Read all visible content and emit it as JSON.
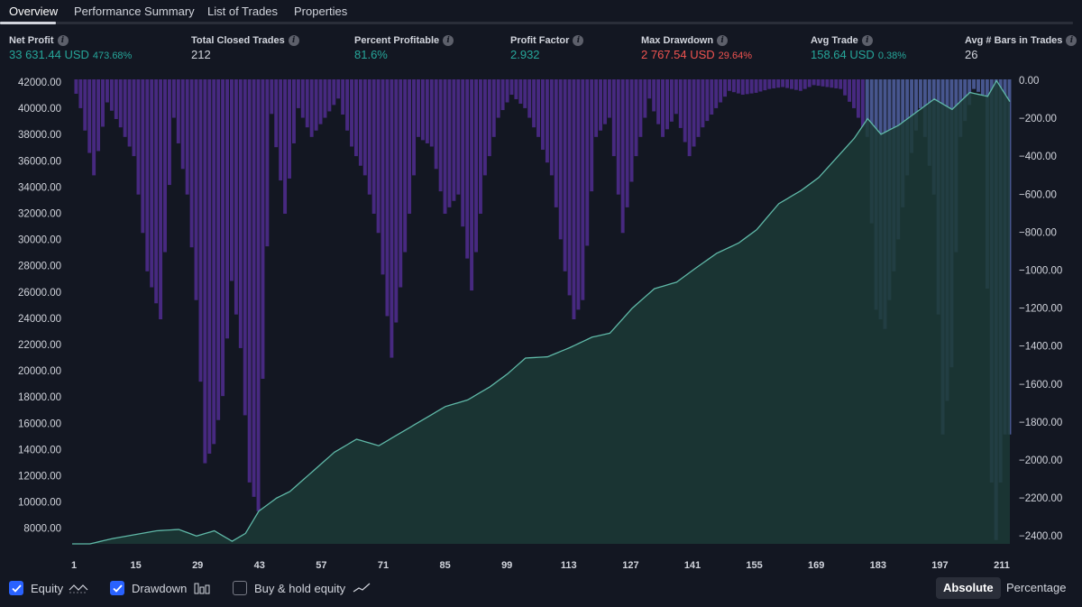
{
  "tabs": [
    {
      "label": "Overview",
      "active": true
    },
    {
      "label": "Performance Summary",
      "active": false
    },
    {
      "label": "List of Trades",
      "active": false
    },
    {
      "label": "Properties",
      "active": false
    }
  ],
  "stats": {
    "net_profit": {
      "label": "Net Profit",
      "value": "33 631.44 USD",
      "sub": "473.68%"
    },
    "total_closed_trades": {
      "label": "Total Closed Trades",
      "value": "212"
    },
    "percent_profitable": {
      "label": "Percent Profitable",
      "value": "81.6%"
    },
    "profit_factor": {
      "label": "Profit Factor",
      "value": "2.932"
    },
    "max_drawdown": {
      "label": "Max Drawdown",
      "value": "2 767.54 USD",
      "sub": "29.64%"
    },
    "avg_trade": {
      "label": "Avg Trade",
      "value": "158.64 USD",
      "sub": "0.38%"
    },
    "avg_bars": {
      "label": "Avg # Bars in Trades",
      "value": "26"
    }
  },
  "colors": {
    "background": "#131722",
    "equity_line": "#5fb8a7",
    "equity_fill": "#1c3a36",
    "drawdown_bar": "#4a2a86",
    "drawdown_bar_overlap": "#4a5a95",
    "positive": "#26a69a",
    "negative": "#ef5350",
    "checkbox": "#2962ff"
  },
  "chart_data": {
    "type": "area",
    "x_ticks": [
      "1",
      "15",
      "29",
      "43",
      "57",
      "71",
      "85",
      "99",
      "113",
      "127",
      "141",
      "155",
      "169",
      "183",
      "197",
      "211"
    ],
    "y_left_ticks": [
      "42000.00",
      "40000.00",
      "38000.00",
      "36000.00",
      "34000.00",
      "32000.00",
      "30000.00",
      "28000.00",
      "26000.00",
      "24000.00",
      "22000.00",
      "20000.00",
      "18000.00",
      "16000.00",
      "14000.00",
      "12000.00",
      "10000.00",
      "8000.00"
    ],
    "y_right_ticks": [
      "0.00",
      "−200.00",
      "−400.00",
      "−600.00",
      "−800.00",
      "−1000.00",
      "−1200.00",
      "−1400.00",
      "−1600.00",
      "−1800.00",
      "−2000.00",
      "−2200.00",
      "−2400.00"
    ],
    "y_left_range": [
      7000,
      42500
    ],
    "y_right_range": [
      -2420,
      0
    ],
    "x_range": [
      1,
      212
    ],
    "series": [
      {
        "name": "Equity",
        "type": "area",
        "points": [
          [
            1,
            7000
          ],
          [
            5,
            7000
          ],
          [
            10,
            7400
          ],
          [
            15,
            7700
          ],
          [
            20,
            8000
          ],
          [
            25,
            8100
          ],
          [
            29,
            7600
          ],
          [
            33,
            8000
          ],
          [
            37,
            7200
          ],
          [
            40,
            7800
          ],
          [
            43,
            9500
          ],
          [
            47,
            10500
          ],
          [
            50,
            11000
          ],
          [
            55,
            12500
          ],
          [
            60,
            14000
          ],
          [
            65,
            15000
          ],
          [
            70,
            14500
          ],
          [
            75,
            15500
          ],
          [
            80,
            16500
          ],
          [
            85,
            17500
          ],
          [
            90,
            18000
          ],
          [
            95,
            19000
          ],
          [
            99,
            20000
          ],
          [
            103,
            21200
          ],
          [
            108,
            21300
          ],
          [
            113,
            22000
          ],
          [
            118,
            22800
          ],
          [
            122,
            23100
          ],
          [
            127,
            25000
          ],
          [
            132,
            26500
          ],
          [
            137,
            27000
          ],
          [
            141,
            28000
          ],
          [
            146,
            29200
          ],
          [
            151,
            30000
          ],
          [
            155,
            31000
          ],
          [
            160,
            33000
          ],
          [
            165,
            34000
          ],
          [
            169,
            35000
          ],
          [
            173,
            36500
          ],
          [
            177,
            38000
          ],
          [
            180,
            39500
          ],
          [
            183,
            38300
          ],
          [
            187,
            39000
          ],
          [
            191,
            40000
          ],
          [
            195,
            41000
          ],
          [
            199,
            40200
          ],
          [
            203,
            41500
          ],
          [
            207,
            41200
          ],
          [
            209,
            42400
          ],
          [
            212,
            40800
          ]
        ]
      },
      {
        "name": "Drawdown",
        "type": "bar",
        "points": [
          [
            1,
            0
          ],
          [
            3,
            -150
          ],
          [
            6,
            -500
          ],
          [
            9,
            -120
          ],
          [
            12,
            -250
          ],
          [
            15,
            -400
          ],
          [
            18,
            -1000
          ],
          [
            21,
            -1250
          ],
          [
            24,
            -200
          ],
          [
            27,
            -600
          ],
          [
            29,
            -1150
          ],
          [
            31,
            -2000
          ],
          [
            33,
            -1900
          ],
          [
            35,
            -1650
          ],
          [
            37,
            -1050
          ],
          [
            39,
            -1400
          ],
          [
            41,
            -2100
          ],
          [
            43,
            -2250
          ],
          [
            46,
            -180
          ],
          [
            49,
            -700
          ],
          [
            52,
            -150
          ],
          [
            55,
            -300
          ],
          [
            58,
            -200
          ],
          [
            61,
            -100
          ],
          [
            64,
            -350
          ],
          [
            67,
            -500
          ],
          [
            70,
            -800
          ],
          [
            73,
            -1450
          ],
          [
            76,
            -900
          ],
          [
            79,
            -300
          ],
          [
            82,
            -350
          ],
          [
            85,
            -700
          ],
          [
            88,
            -600
          ],
          [
            91,
            -1100
          ],
          [
            94,
            -500
          ],
          [
            97,
            -200
          ],
          [
            100,
            -80
          ],
          [
            103,
            -150
          ],
          [
            106,
            -300
          ],
          [
            109,
            -500
          ],
          [
            112,
            -1000
          ],
          [
            114,
            -1250
          ],
          [
            116,
            -1150
          ],
          [
            119,
            -300
          ],
          [
            122,
            -200
          ],
          [
            125,
            -800
          ],
          [
            128,
            -400
          ],
          [
            131,
            -100
          ],
          [
            134,
            -300
          ],
          [
            137,
            -180
          ],
          [
            140,
            -400
          ],
          [
            143,
            -250
          ],
          [
            146,
            -150
          ],
          [
            149,
            -60
          ],
          [
            152,
            -80
          ],
          [
            155,
            -70
          ],
          [
            158,
            -50
          ],
          [
            161,
            -40
          ],
          [
            165,
            -60
          ],
          [
            168,
            -30
          ],
          [
            171,
            -40
          ],
          [
            174,
            -50
          ],
          [
            177,
            -150
          ],
          [
            180,
            -300
          ],
          [
            182,
            -1200
          ],
          [
            184,
            -1300
          ],
          [
            186,
            -1000
          ],
          [
            189,
            -500
          ],
          [
            192,
            -150
          ],
          [
            195,
            -600
          ],
          [
            197,
            -1850
          ],
          [
            199,
            -1500
          ],
          [
            201,
            -300
          ],
          [
            204,
            -50
          ],
          [
            206,
            -80
          ],
          [
            208,
            -2100
          ],
          [
            209,
            -2400
          ],
          [
            210,
            -2100
          ],
          [
            211,
            -1850
          ]
        ]
      },
      {
        "name": "Buy & hold equity",
        "type": "line",
        "points": []
      }
    ]
  },
  "legend": {
    "equity": {
      "label": "Equity",
      "checked": true
    },
    "drawdown": {
      "label": "Drawdown",
      "checked": true
    },
    "buyhold": {
      "label": "Buy & hold equity",
      "checked": false
    }
  },
  "view_toggle": {
    "absolute": "Absolute",
    "percentage": "Percentage",
    "selected": "absolute"
  }
}
